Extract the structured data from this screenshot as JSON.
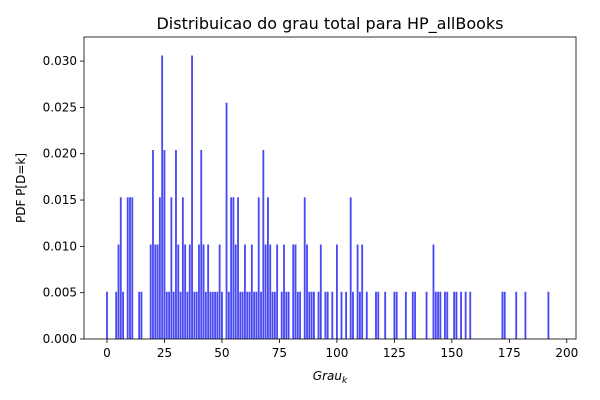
{
  "chart_data": {
    "type": "bar",
    "title": "Distribuicao do grau total para HP_allBooks",
    "xlabel_base": "Grau",
    "xlabel_sub": "k",
    "ylabel": "PDF P[D=k]",
    "xlim": [
      -10,
      204
    ],
    "ylim": [
      0,
      0.0326
    ],
    "xticks": [
      "0",
      "25",
      "50",
      "75",
      "100",
      "125",
      "150",
      "175",
      "200"
    ],
    "yticks": [
      "0.000",
      "0.005",
      "0.010",
      "0.015",
      "0.020",
      "0.025",
      "0.030"
    ],
    "bar_color": "#4a4af4",
    "x": [
      0,
      4,
      5,
      6,
      7,
      9,
      10,
      11,
      14,
      15,
      19,
      20,
      21,
      22,
      23,
      24,
      25,
      26,
      27,
      28,
      29,
      30,
      31,
      32,
      33,
      34,
      35,
      36,
      37,
      38,
      39,
      40,
      41,
      42,
      43,
      44,
      45,
      46,
      47,
      48,
      49,
      50,
      52,
      53,
      54,
      55,
      56,
      57,
      58,
      59,
      60,
      61,
      62,
      63,
      64,
      65,
      66,
      67,
      68,
      69,
      70,
      71,
      72,
      73,
      74,
      76,
      77,
      78,
      79,
      81,
      82,
      83,
      84,
      86,
      87,
      88,
      89,
      90,
      92,
      93,
      95,
      96,
      98,
      100,
      102,
      104,
      106,
      107,
      109,
      110,
      111,
      113,
      117,
      118,
      121,
      125,
      126,
      130,
      133,
      134,
      139,
      142,
      143,
      144,
      145,
      147,
      148,
      151,
      152,
      154,
      156,
      158,
      172,
      173,
      178,
      182,
      192
    ],
    "values": [
      0.0051,
      0.0051,
      0.0102,
      0.0153,
      0.0051,
      0.0153,
      0.0153,
      0.0153,
      0.0051,
      0.0051,
      0.0102,
      0.0204,
      0.0102,
      0.0102,
      0.0153,
      0.0306,
      0.0204,
      0.0051,
      0.0051,
      0.0153,
      0.0051,
      0.0204,
      0.0102,
      0.0051,
      0.0153,
      0.0102,
      0.0051,
      0.0102,
      0.0306,
      0.0051,
      0.0051,
      0.0102,
      0.0204,
      0.0102,
      0.0051,
      0.0102,
      0.0051,
      0.0051,
      0.0051,
      0.0051,
      0.0102,
      0.0051,
      0.0255,
      0.0051,
      0.0153,
      0.0153,
      0.0102,
      0.0153,
      0.0051,
      0.0051,
      0.0102,
      0.0051,
      0.0051,
      0.0102,
      0.0051,
      0.0051,
      0.0153,
      0.0051,
      0.0204,
      0.0102,
      0.0153,
      0.0102,
      0.0051,
      0.0051,
      0.0102,
      0.0051,
      0.0102,
      0.0051,
      0.0051,
      0.0102,
      0.0102,
      0.0051,
      0.0051,
      0.0153,
      0.0102,
      0.0051,
      0.0051,
      0.0051,
      0.0051,
      0.0102,
      0.0051,
      0.0051,
      0.0051,
      0.0102,
      0.0051,
      0.0051,
      0.0153,
      0.0051,
      0.0102,
      0.0051,
      0.0102,
      0.0051,
      0.0051,
      0.0051,
      0.0051,
      0.0051,
      0.0051,
      0.0051,
      0.0051,
      0.0051,
      0.0051,
      0.0102,
      0.0051,
      0.0051,
      0.0051,
      0.0051,
      0.0051,
      0.0051,
      0.0051,
      0.0051,
      0.0051,
      0.0051,
      0.0051,
      0.0051,
      0.0051,
      0.0051,
      0.0051
    ]
  }
}
